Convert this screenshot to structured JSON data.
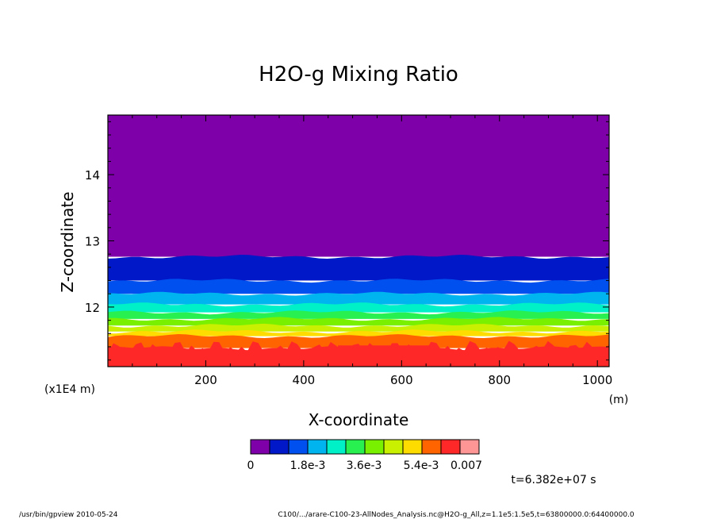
{
  "footer": {
    "left": "/usr/bin/gpview  2010-05-24",
    "right": "C100/.../arare-C100-23-AllNodes_Analysis.nc@H2O-g_All,z=1.1e5:1.5e5,t=63800000.0:64400000.0"
  },
  "time_label": "t=6.382e+07 s",
  "chart_data": {
    "type": "heatmap",
    "title": "H2O-g Mixing Ratio",
    "xlabel": "X-coordinate",
    "ylabel": "Z-coordinate",
    "x_unit": "(m)",
    "y_unit": "(x1E4 m)",
    "xlim": [
      0,
      1024
    ],
    "ylim": [
      11.1,
      14.9
    ],
    "x_ticks": [
      200,
      400,
      600,
      800,
      1000
    ],
    "x_tick_labels": [
      "200",
      "400",
      "600",
      "800",
      "1000"
    ],
    "y_ticks": [
      12,
      13,
      14
    ],
    "y_tick_labels": [
      "12",
      "13",
      "14"
    ],
    "colorbar": {
      "colors": [
        "#7d00a8",
        "#0018c8",
        "#0050f0",
        "#00b4f0",
        "#00f0c8",
        "#28f050",
        "#78f000",
        "#c8f000",
        "#ffdc00",
        "#ff6400",
        "#ff2828",
        "#ff9696"
      ],
      "labels": [
        "0",
        "1.8e-3",
        "3.6e-3",
        "5.4e-3",
        "0.007"
      ]
    },
    "contour_bands": [
      {
        "level_index": 0,
        "z_top": 14.9,
        "z_bottom": 12.76
      },
      {
        "level_index": 1,
        "z_top": 12.76,
        "z_bottom": 12.4
      },
      {
        "level_index": 2,
        "z_top": 12.4,
        "z_bottom": 12.2
      },
      {
        "level_index": 3,
        "z_top": 12.2,
        "z_bottom": 12.04
      },
      {
        "level_index": 4,
        "z_top": 12.04,
        "z_bottom": 11.92
      },
      {
        "level_index": 5,
        "z_top": 11.92,
        "z_bottom": 11.82
      },
      {
        "level_index": 6,
        "z_top": 11.82,
        "z_bottom": 11.72
      },
      {
        "level_index": 7,
        "z_top": 11.72,
        "z_bottom": 11.63
      },
      {
        "level_index": 8,
        "z_top": 11.63,
        "z_bottom": 11.56
      },
      {
        "level_index": 9,
        "z_top": 11.56,
        "z_bottom": 11.38
      },
      {
        "level_index": 10,
        "z_top": 11.38,
        "z_bottom": 11.1
      }
    ]
  }
}
